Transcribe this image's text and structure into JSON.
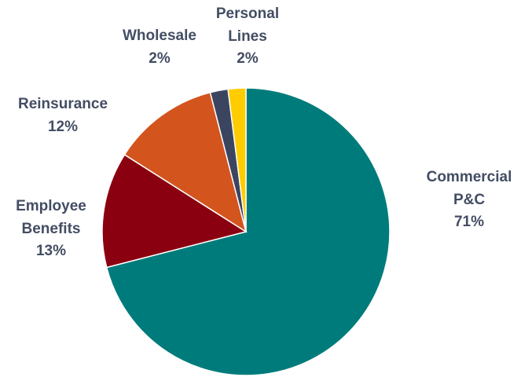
{
  "chart_data": {
    "type": "pie",
    "categories": [
      "Commercial P&C",
      "Employee Benefits",
      "Reinsurance",
      "Wholesale",
      "Personal Lines"
    ],
    "values": [
      71,
      13,
      12,
      2,
      2
    ],
    "value_labels": [
      "71%",
      "13%",
      "12%",
      "2%",
      "2%"
    ],
    "colors": [
      "#007b7b",
      "#8b0010",
      "#d4541e",
      "#3b4560",
      "#ffcc00"
    ]
  }
}
